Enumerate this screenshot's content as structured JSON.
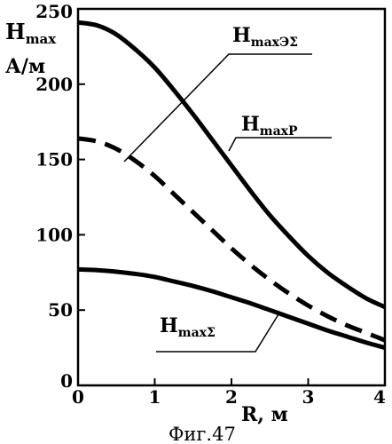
{
  "chart_data": {
    "type": "line",
    "ylabel_main": "H",
    "ylabel_sub": "max",
    "yunit": "А/м",
    "xlabel": "R, м",
    "caption": "Фиг.47",
    "xlim": [
      0,
      4
    ],
    "ylim": [
      0,
      250
    ],
    "xticks": [
      0,
      1,
      2,
      3,
      4
    ],
    "yticks": [
      0,
      50,
      100,
      150,
      200,
      250
    ],
    "grid": false,
    "series": [
      {
        "label_main": "H",
        "label_sub": "maxЭΣ",
        "style": "solid",
        "x": [
          0,
          0.25,
          0.5,
          0.75,
          1.0,
          1.25,
          1.5,
          1.75,
          2.0,
          2.25,
          2.5,
          2.75,
          3.0,
          3.25,
          3.5,
          3.75,
          4.0
        ],
        "y": [
          241,
          239,
          233,
          223,
          211,
          196,
          180,
          163,
          146,
          129,
          113,
          99,
          86,
          75,
          66,
          58,
          52
        ]
      },
      {
        "label_main": "H",
        "label_sub": "maxP",
        "style": "dashed",
        "x": [
          0,
          0.25,
          0.5,
          0.75,
          1.0,
          1.25,
          1.5,
          1.75,
          2.0,
          2.25,
          2.5,
          2.75,
          3.0,
          3.25,
          3.5,
          3.75,
          4.0
        ],
        "y": [
          164,
          162,
          157,
          149,
          139,
          127,
          115,
          103,
          91,
          80,
          70,
          61,
          53,
          46,
          40,
          35,
          30
        ]
      },
      {
        "label_main": "H",
        "label_sub": "maxΣ",
        "style": "solid",
        "x": [
          0,
          0.25,
          0.5,
          0.75,
          1.0,
          1.25,
          1.5,
          1.75,
          2.0,
          2.25,
          2.5,
          2.75,
          3.0,
          3.25,
          3.5,
          3.75,
          4.0
        ],
        "y": [
          77,
          76.5,
          75.5,
          74,
          72,
          69,
          66,
          62.5,
          58.5,
          54.5,
          50,
          45.5,
          41,
          36.5,
          32.5,
          28.5,
          25
        ]
      }
    ]
  }
}
